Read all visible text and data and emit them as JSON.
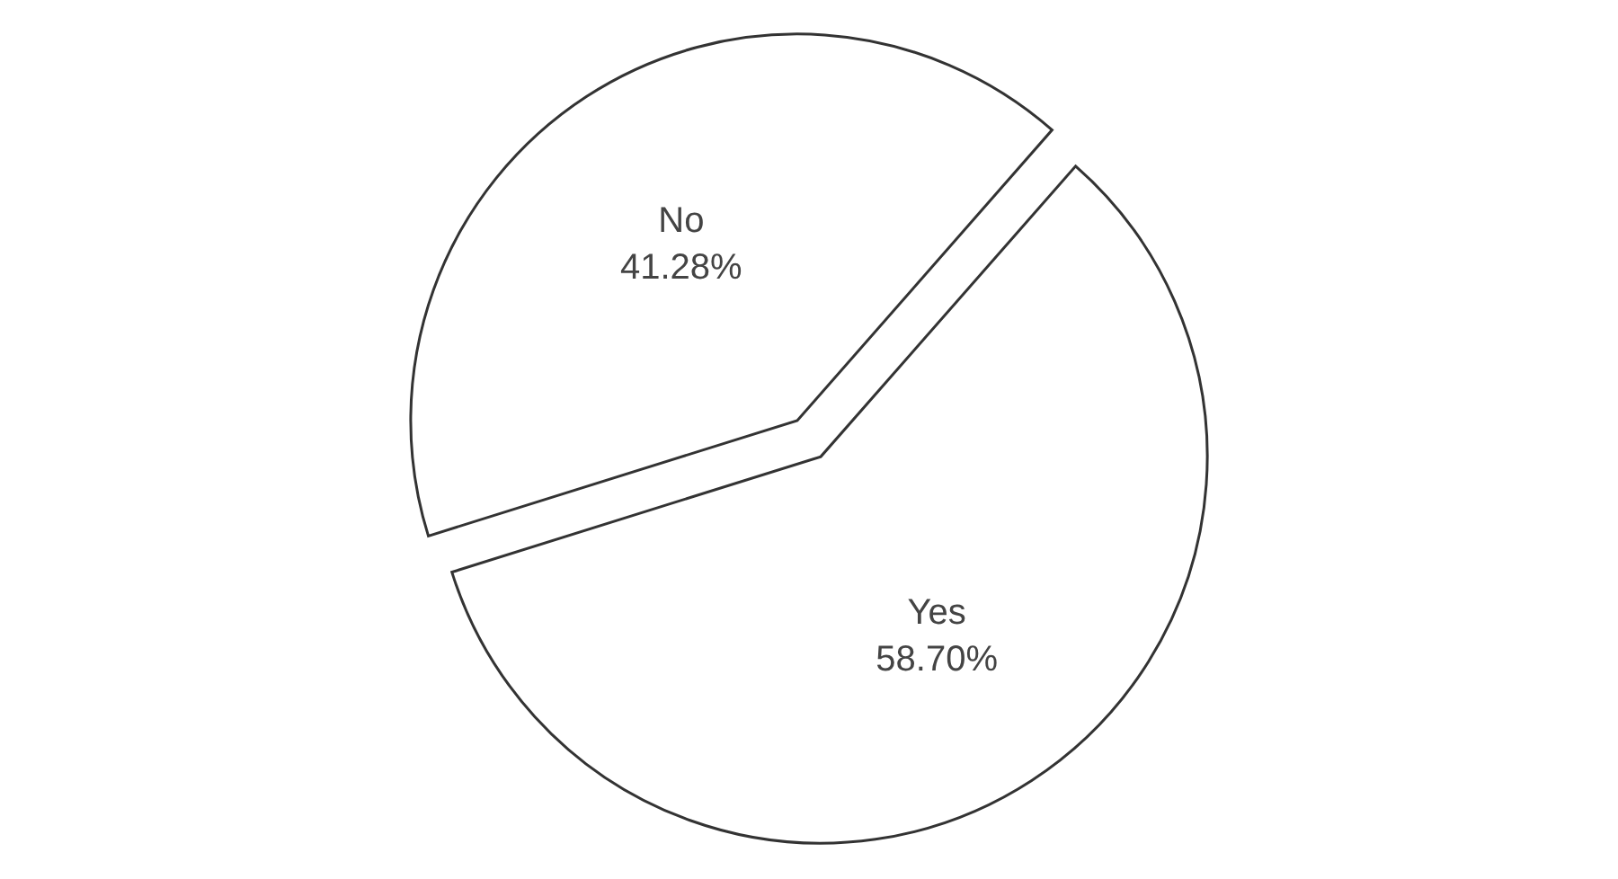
{
  "chart_data": {
    "type": "pie",
    "categories": [
      "No",
      "Yes"
    ],
    "values": [
      41.28,
      58.7
    ],
    "colors": [
      "#ffffff",
      "#ffffff"
    ],
    "value_labels": [
      "41.28%",
      "58.70%"
    ]
  }
}
